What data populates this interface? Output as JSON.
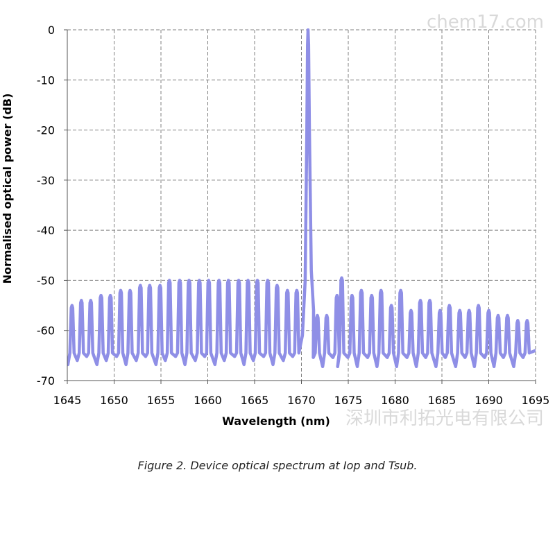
{
  "chart_data": {
    "type": "line",
    "xlabel": "Wavelength (nm)",
    "ylabel": "Normalised optical power  (dB)",
    "xlim": [
      1645,
      1695
    ],
    "ylim": [
      -70,
      0
    ],
    "x_ticks": [
      1645,
      1650,
      1655,
      1660,
      1665,
      1670,
      1675,
      1680,
      1685,
      1690,
      1695
    ],
    "y_ticks": [
      0,
      -10,
      -20,
      -30,
      -40,
      -50,
      -60,
      -70
    ],
    "grid": true,
    "line_color": "#8f8fe6",
    "peak": {
      "x": 1670.7,
      "y": 0
    },
    "side_mode_peaks": [
      {
        "x": 1645.5,
        "y": -55
      },
      {
        "x": 1646.5,
        "y": -54
      },
      {
        "x": 1647.5,
        "y": -54
      },
      {
        "x": 1648.6,
        "y": -53
      },
      {
        "x": 1649.6,
        "y": -53
      },
      {
        "x": 1650.7,
        "y": -52
      },
      {
        "x": 1651.7,
        "y": -52
      },
      {
        "x": 1652.8,
        "y": -51
      },
      {
        "x": 1653.8,
        "y": -51
      },
      {
        "x": 1654.9,
        "y": -51
      },
      {
        "x": 1655.9,
        "y": -50
      },
      {
        "x": 1657.0,
        "y": -50
      },
      {
        "x": 1658.0,
        "y": -50
      },
      {
        "x": 1659.1,
        "y": -50
      },
      {
        "x": 1660.1,
        "y": -50
      },
      {
        "x": 1661.2,
        "y": -50
      },
      {
        "x": 1662.2,
        "y": -50
      },
      {
        "x": 1663.3,
        "y": -50
      },
      {
        "x": 1664.3,
        "y": -50
      },
      {
        "x": 1665.3,
        "y": -50
      },
      {
        "x": 1666.4,
        "y": -50
      },
      {
        "x": 1667.4,
        "y": -51
      },
      {
        "x": 1668.5,
        "y": -52
      },
      {
        "x": 1669.5,
        "y": -52
      },
      {
        "x": 1671.7,
        "y": -57
      },
      {
        "x": 1672.7,
        "y": -57
      },
      {
        "x": 1673.8,
        "y": -53
      },
      {
        "x": 1674.3,
        "y": -49.5
      },
      {
        "x": 1675.4,
        "y": -53
      },
      {
        "x": 1676.4,
        "y": -52
      },
      {
        "x": 1677.5,
        "y": -53
      },
      {
        "x": 1678.5,
        "y": -52
      },
      {
        "x": 1679.6,
        "y": -55
      },
      {
        "x": 1680.6,
        "y": -52
      },
      {
        "x": 1681.7,
        "y": -56
      },
      {
        "x": 1682.7,
        "y": -54
      },
      {
        "x": 1683.7,
        "y": -54
      },
      {
        "x": 1684.8,
        "y": -56
      },
      {
        "x": 1685.8,
        "y": -55
      },
      {
        "x": 1686.9,
        "y": -56
      },
      {
        "x": 1687.9,
        "y": -56
      },
      {
        "x": 1688.9,
        "y": -55
      },
      {
        "x": 1690.0,
        "y": -56
      },
      {
        "x": 1691.0,
        "y": -57
      },
      {
        "x": 1692.0,
        "y": -57
      },
      {
        "x": 1693.1,
        "y": -58
      },
      {
        "x": 1694.1,
        "y": -58
      }
    ],
    "trough_level": -66
  },
  "watermark_top": "chem17.com",
  "watermark_bottom": "深圳市利拓光电有限公司",
  "caption": "Figure 2. Device optical spectrum at Iop and Tsub."
}
